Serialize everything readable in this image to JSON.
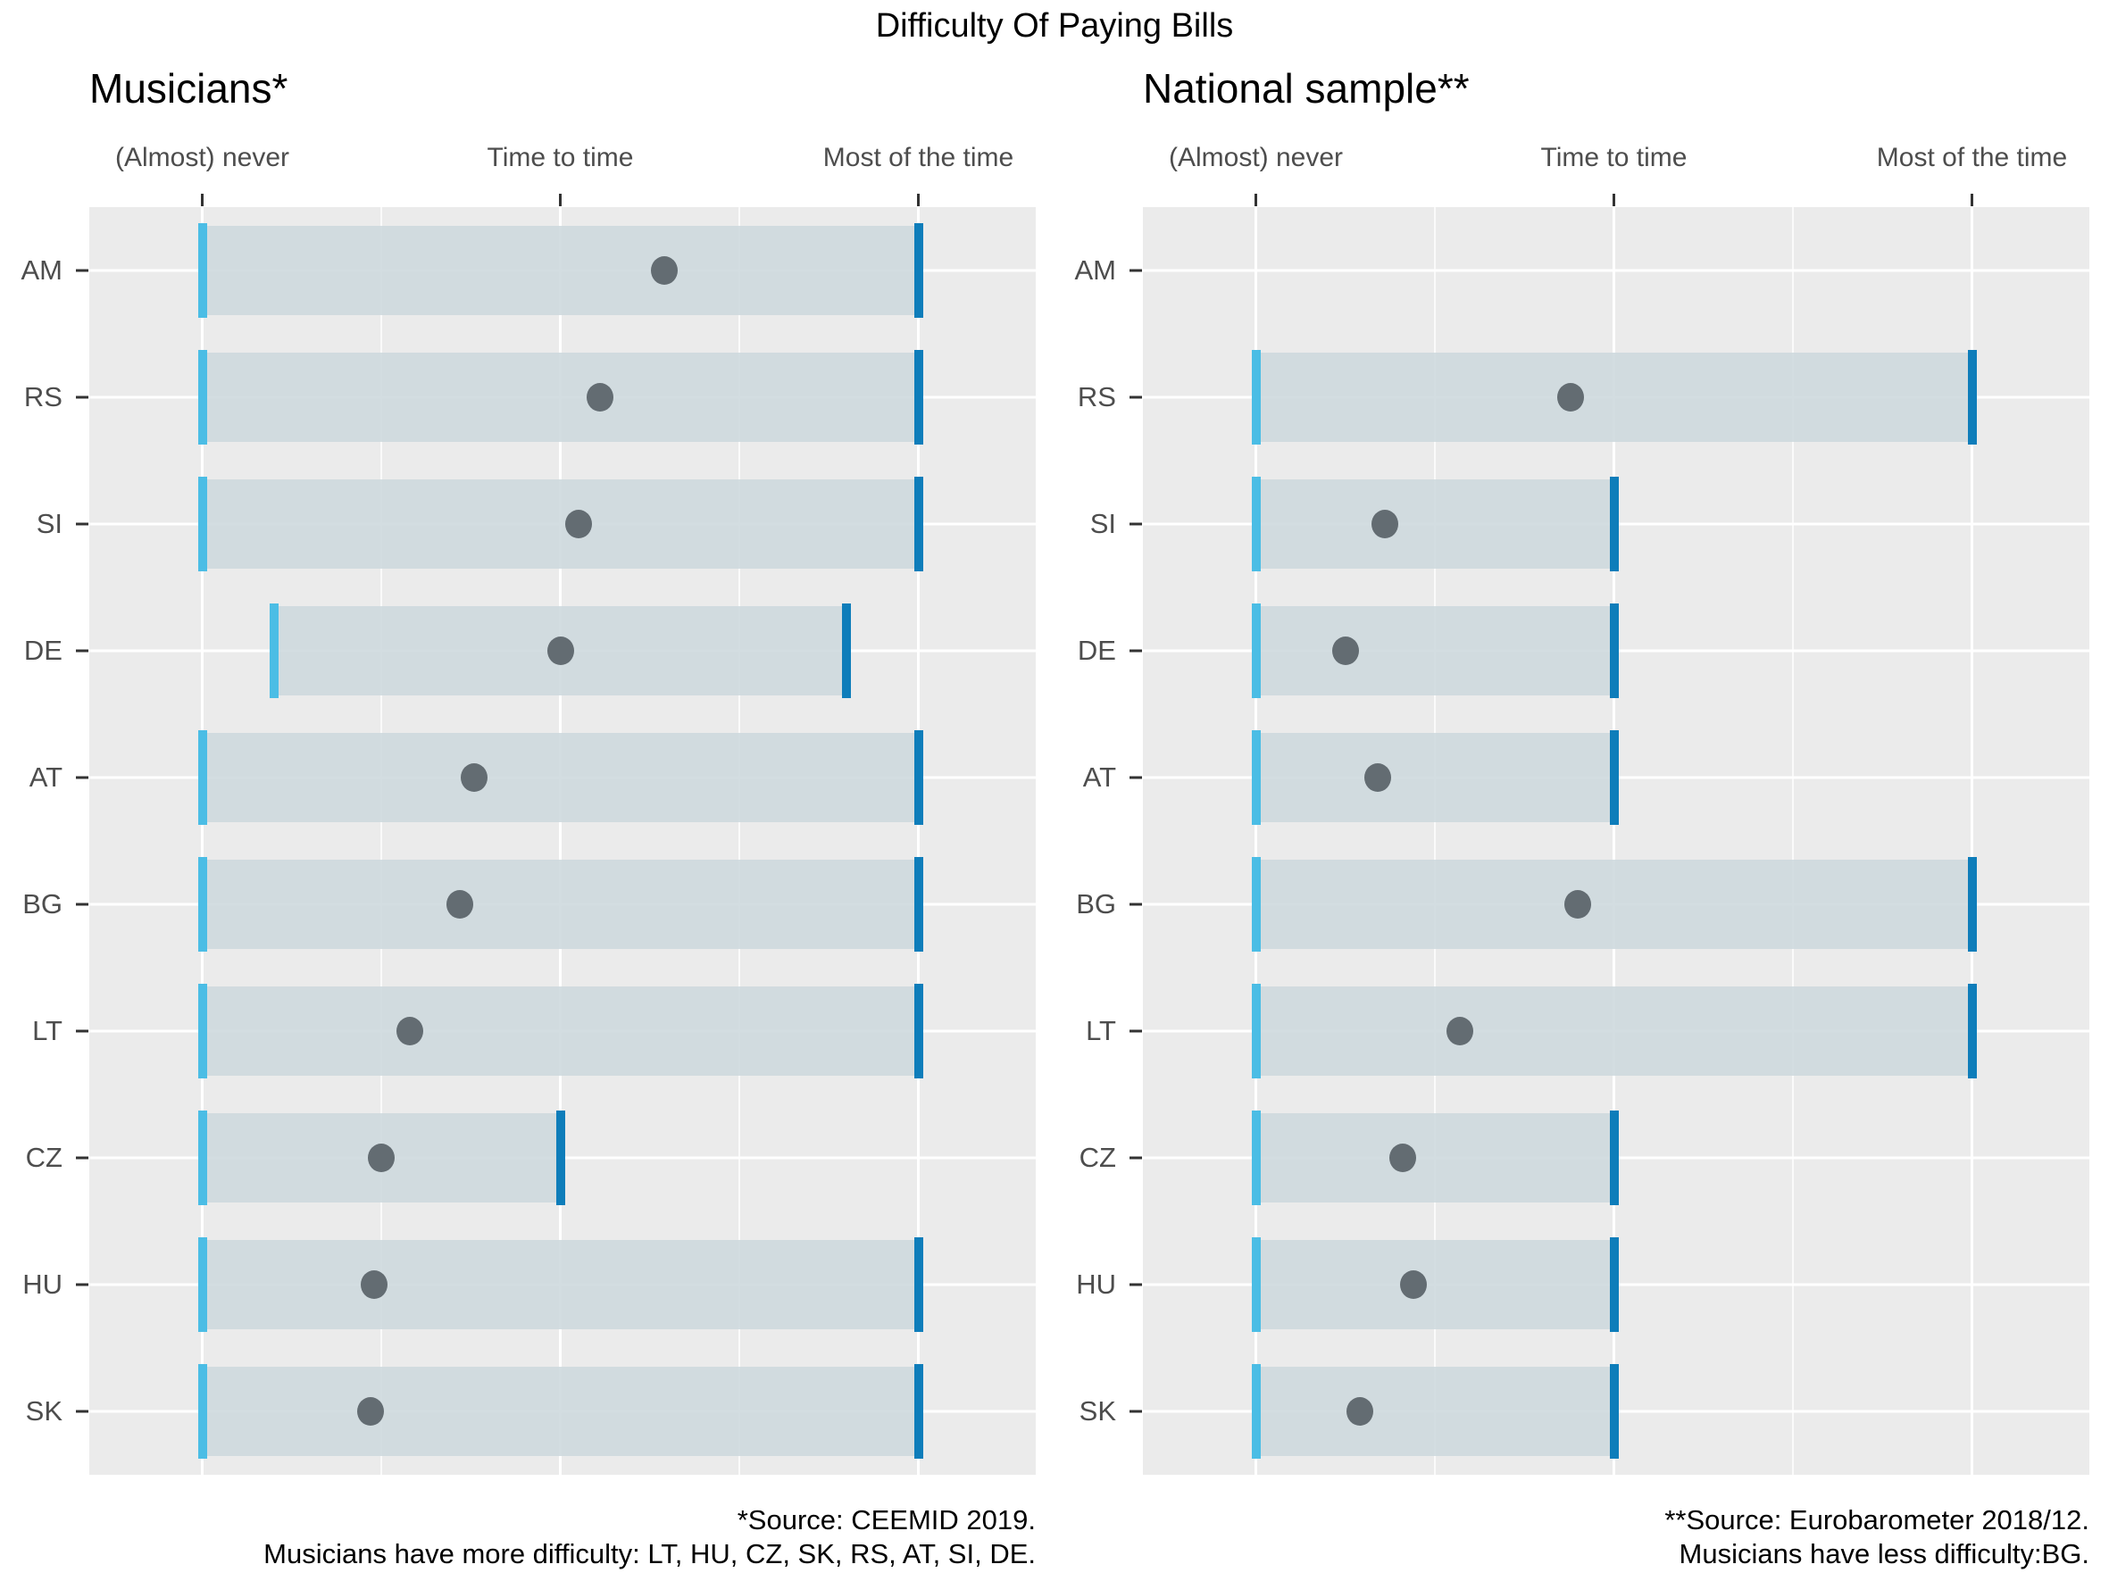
{
  "title": "Difficulty Of Paying Bills",
  "chart_data": {
    "type": "scatter",
    "subtype": "horizontal-range-dumbbell",
    "title": "Difficulty Of Paying Bills",
    "x_axis": {
      "tick_labels": [
        "(Almost) never",
        "Time to time",
        "Most of the time"
      ],
      "tick_values": [
        1,
        2,
        3
      ],
      "range": [
        0.68,
        3.33
      ],
      "position": "top"
    },
    "y_axis": {
      "categories": [
        "AM",
        "RS",
        "SI",
        "DE",
        "AT",
        "BG",
        "LT",
        "CZ",
        "HU",
        "SK"
      ]
    },
    "layout": {
      "grid": "on",
      "major_gridlines_x": [
        1,
        2,
        3
      ],
      "minor_gridlines_x": [
        1.5,
        2.5
      ],
      "horizontal_gridlines": "category-centers",
      "legend": "none"
    },
    "panels": [
      {
        "name": "Musicians*",
        "source": "*Source: CEEMID 2019.",
        "note": "Musicians have more difficulty: LT, HU, CZ, SK, RS, AT, SI, DE.",
        "rows": [
          {
            "country": "AM",
            "range_start": 1.0,
            "range_end": 3.0,
            "dot": 2.29
          },
          {
            "country": "RS",
            "range_start": 1.0,
            "range_end": 3.0,
            "dot": 2.11
          },
          {
            "country": "SI",
            "range_start": 1.0,
            "range_end": 3.0,
            "dot": 2.05
          },
          {
            "country": "DE",
            "range_start": 1.2,
            "range_end": 2.8,
            "dot": 2.0
          },
          {
            "country": "AT",
            "range_start": 1.0,
            "range_end": 3.0,
            "dot": 1.76
          },
          {
            "country": "BG",
            "range_start": 1.0,
            "range_end": 3.0,
            "dot": 1.72
          },
          {
            "country": "LT",
            "range_start": 1.0,
            "range_end": 3.0,
            "dot": 1.58
          },
          {
            "country": "CZ",
            "range_start": 1.0,
            "range_end": 2.0,
            "dot": 1.5
          },
          {
            "country": "HU",
            "range_start": 1.0,
            "range_end": 3.0,
            "dot": 1.48
          },
          {
            "country": "SK",
            "range_start": 1.0,
            "range_end": 3.0,
            "dot": 1.47
          }
        ]
      },
      {
        "name": "National sample**",
        "source": "**Source: Eurobarometer 2018/12.",
        "note": "Musicians have less difficulty:BG.",
        "rows": [
          {
            "country": "AM",
            "range_start": null,
            "range_end": null,
            "dot": null
          },
          {
            "country": "RS",
            "range_start": 1.0,
            "range_end": 3.0,
            "dot": 1.88
          },
          {
            "country": "SI",
            "range_start": 1.0,
            "range_end": 2.0,
            "dot": 1.36
          },
          {
            "country": "DE",
            "range_start": 1.0,
            "range_end": 2.0,
            "dot": 1.25
          },
          {
            "country": "AT",
            "range_start": 1.0,
            "range_end": 2.0,
            "dot": 1.34
          },
          {
            "country": "BG",
            "range_start": 1.0,
            "range_end": 3.0,
            "dot": 1.9
          },
          {
            "country": "LT",
            "range_start": 1.0,
            "range_end": 3.0,
            "dot": 1.57
          },
          {
            "country": "CZ",
            "range_start": 1.0,
            "range_end": 2.0,
            "dot": 1.41
          },
          {
            "country": "HU",
            "range_start": 1.0,
            "range_end": 2.0,
            "dot": 1.44
          },
          {
            "country": "SK",
            "range_start": 1.0,
            "range_end": 2.0,
            "dot": 1.29
          }
        ]
      }
    ],
    "colors": {
      "range_start_tick": "#4bbde5",
      "range_end_tick": "#0e7dba",
      "band": "rgba(205,216,221,0.88)",
      "dot": "#636c72",
      "plot_background": "#ebebeb",
      "gridline": "#ffffff",
      "axis_text": "#4d4d4d",
      "title_text": "#000000"
    }
  }
}
